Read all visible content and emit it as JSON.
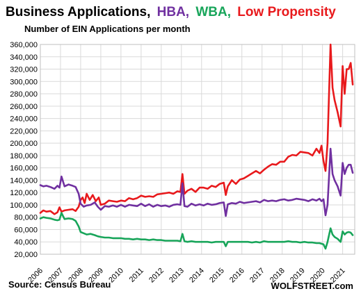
{
  "title": {
    "part1": "Business Applications,",
    "part2": "HBA,",
    "part3": "WBA,",
    "part4": "Low Propensity"
  },
  "subtitle": "Number of EIN Applications per month",
  "footer": {
    "source": "Source: Census Bureau",
    "brand": "WOLFSTREET.com"
  },
  "colors": {
    "business_applications": "#e8191c",
    "hba": "#7030a0",
    "wba": "#18a55a",
    "title_black": "#000000"
  },
  "chart_data": {
    "type": "line",
    "title": "Business Applications, HBA, WBA, Low Propensity",
    "subtitle": "Number of EIN Applications per month",
    "xlabel": "",
    "ylabel": "",
    "ylim": [
      20000,
      360000
    ],
    "xlim": [
      2006,
      2021.6
    ],
    "grid": true,
    "legend": "title",
    "yticks": [
      20000,
      40000,
      60000,
      80000,
      100000,
      120000,
      140000,
      160000,
      180000,
      200000,
      220000,
      240000,
      260000,
      280000,
      300000,
      320000,
      340000,
      360000
    ],
    "ytick_labels": [
      "20,000",
      "40,000",
      "60,000",
      "80,000",
      "100,000",
      "120,000",
      "140,000",
      "160,000",
      "180,000",
      "200,000",
      "220,000",
      "240,000",
      "260,000",
      "280,000",
      "300,000",
      "320,000",
      "340,000",
      "360,000"
    ],
    "xticks": [
      2006,
      2007,
      2008,
      2009,
      2010,
      2011,
      2012,
      2013,
      2014,
      2015,
      2016,
      2017,
      2018,
      2019,
      2020,
      2021
    ],
    "xtick_labels": [
      "2006",
      "2007",
      "2008",
      "2009",
      "2010",
      "2011",
      "2012",
      "2013",
      "2014",
      "2015",
      "2016",
      "2017",
      "2018",
      "2019",
      "2020",
      "2021"
    ],
    "series": [
      {
        "name": "Business Applications",
        "color": "#e8191c",
        "x": [
          2006.0,
          2006.15,
          2006.3,
          2006.5,
          2006.7,
          2006.85,
          2006.95,
          2007.05,
          2007.2,
          2007.4,
          2007.6,
          2007.75,
          2007.9,
          2008.0,
          2008.1,
          2008.2,
          2008.3,
          2008.45,
          2008.6,
          2008.75,
          2008.9,
          2009.0,
          2009.2,
          2009.4,
          2009.6,
          2009.8,
          2010.0,
          2010.2,
          2010.4,
          2010.6,
          2010.8,
          2011.0,
          2011.2,
          2011.4,
          2011.6,
          2011.8,
          2012.0,
          2012.2,
          2012.4,
          2012.6,
          2012.8,
          2012.95,
          2013.05,
          2013.15,
          2013.3,
          2013.5,
          2013.7,
          2013.9,
          2014.1,
          2014.3,
          2014.5,
          2014.7,
          2014.9,
          2015.1,
          2015.2,
          2015.3,
          2015.5,
          2015.7,
          2015.9,
          2016.1,
          2016.3,
          2016.5,
          2016.7,
          2016.9,
          2017.1,
          2017.3,
          2017.5,
          2017.7,
          2017.9,
          2018.1,
          2018.3,
          2018.5,
          2018.7,
          2018.9,
          2019.1,
          2019.3,
          2019.5,
          2019.7,
          2019.85,
          2019.95,
          2020.05,
          2020.15,
          2020.25,
          2020.4,
          2020.5,
          2020.6,
          2020.75,
          2020.9,
          2021.0,
          2021.1,
          2021.2,
          2021.3,
          2021.4,
          2021.5
        ],
        "values": [
          87000,
          91000,
          89000,
          90000,
          85000,
          88000,
          96000,
          89000,
          91000,
          92000,
          93000,
          90000,
          97000,
          108000,
          112000,
          103000,
          118000,
          108000,
          116000,
          106000,
          112000,
          100000,
          102000,
          107000,
          106000,
          105000,
          107000,
          106000,
          111000,
          109000,
          111000,
          115000,
          113000,
          114000,
          113000,
          117000,
          118000,
          119000,
          120000,
          118000,
          122000,
          121000,
          150000,
          118000,
          123000,
          126000,
          121000,
          128000,
          128000,
          126000,
          131000,
          129000,
          134000,
          136000,
          116000,
          130000,
          140000,
          134000,
          141000,
          143000,
          147000,
          151000,
          155000,
          151000,
          157000,
          162000,
          166000,
          165000,
          170000,
          170000,
          178000,
          181000,
          180000,
          186000,
          185000,
          184000,
          180000,
          191000,
          184000,
          196000,
          171000,
          155000,
          200000,
          360000,
          290000,
          270000,
          250000,
          227000,
          325000,
          280000,
          320000,
          320000,
          330000,
          295000
        ]
      },
      {
        "name": "HBA",
        "color": "#7030a0",
        "x": [
          2006.0,
          2006.15,
          2006.3,
          2006.5,
          2006.7,
          2006.85,
          2006.95,
          2007.05,
          2007.2,
          2007.4,
          2007.6,
          2007.75,
          2007.9,
          2008.0,
          2008.15,
          2008.3,
          2008.5,
          2008.7,
          2008.85,
          2009.0,
          2009.2,
          2009.4,
          2009.6,
          2009.8,
          2010.0,
          2010.2,
          2010.4,
          2010.6,
          2010.8,
          2011.0,
          2011.2,
          2011.4,
          2011.6,
          2011.8,
          2012.0,
          2012.2,
          2012.4,
          2012.6,
          2012.8,
          2012.95,
          2013.05,
          2013.15,
          2013.3,
          2013.5,
          2013.7,
          2013.9,
          2014.1,
          2014.3,
          2014.5,
          2014.7,
          2014.9,
          2015.1,
          2015.2,
          2015.3,
          2015.5,
          2015.7,
          2015.9,
          2016.1,
          2016.3,
          2016.5,
          2016.7,
          2016.9,
          2017.1,
          2017.3,
          2017.5,
          2017.7,
          2017.9,
          2018.1,
          2018.3,
          2018.5,
          2018.7,
          2018.9,
          2019.1,
          2019.3,
          2019.5,
          2019.7,
          2019.85,
          2019.95,
          2020.05,
          2020.15,
          2020.25,
          2020.4,
          2020.5,
          2020.6,
          2020.75,
          2020.9,
          2021.0,
          2021.1,
          2021.2,
          2021.3,
          2021.4,
          2021.5
        ],
        "values": [
          132000,
          130000,
          131000,
          129000,
          126000,
          131000,
          128000,
          146000,
          130000,
          133000,
          131000,
          129000,
          118000,
          102000,
          97000,
          99000,
          100000,
          104000,
          97000,
          92000,
          98000,
          97000,
          99000,
          97000,
          100000,
          97000,
          100000,
          99000,
          98000,
          102000,
          98000,
          101000,
          97000,
          100000,
          98000,
          99000,
          97000,
          100000,
          101000,
          100000,
          135000,
          98000,
          97000,
          102000,
          99000,
          101000,
          99000,
          102000,
          100000,
          101000,
          103000,
          104000,
          82000,
          101000,
          103000,
          102000,
          105000,
          103000,
          104000,
          105000,
          106000,
          104000,
          108000,
          106000,
          107000,
          106000,
          108000,
          109000,
          107000,
          108000,
          110000,
          109000,
          108000,
          106000,
          109000,
          107000,
          110000,
          106000,
          109000,
          83000,
          100000,
          191000,
          150000,
          140000,
          130000,
          115000,
          168000,
          150000,
          160000,
          165000,
          165000,
          152000
        ]
      },
      {
        "name": "WBA",
        "color": "#18a55a",
        "x": [
          2006.0,
          2006.15,
          2006.3,
          2006.5,
          2006.7,
          2006.85,
          2006.95,
          2007.05,
          2007.2,
          2007.4,
          2007.6,
          2007.75,
          2007.9,
          2008.0,
          2008.15,
          2008.3,
          2008.5,
          2008.7,
          2008.85,
          2009.0,
          2009.2,
          2009.4,
          2009.6,
          2009.8,
          2010.0,
          2010.2,
          2010.4,
          2010.6,
          2010.8,
          2011.0,
          2011.2,
          2011.4,
          2011.6,
          2011.8,
          2012.0,
          2012.2,
          2012.4,
          2012.6,
          2012.8,
          2012.95,
          2013.05,
          2013.15,
          2013.3,
          2013.5,
          2013.7,
          2013.9,
          2014.1,
          2014.3,
          2014.5,
          2014.7,
          2014.9,
          2015.1,
          2015.2,
          2015.3,
          2015.5,
          2015.7,
          2015.9,
          2016.1,
          2016.3,
          2016.5,
          2016.7,
          2016.9,
          2017.1,
          2017.3,
          2017.5,
          2017.7,
          2017.9,
          2018.1,
          2018.3,
          2018.5,
          2018.7,
          2018.9,
          2019.1,
          2019.3,
          2019.5,
          2019.7,
          2019.85,
          2019.95,
          2020.05,
          2020.15,
          2020.25,
          2020.4,
          2020.5,
          2020.6,
          2020.75,
          2020.9,
          2021.0,
          2021.1,
          2021.2,
          2021.3,
          2021.4,
          2021.5
        ],
        "values": [
          78000,
          80000,
          79000,
          78000,
          76000,
          75000,
          76000,
          87000,
          77000,
          78000,
          77000,
          74000,
          65000,
          56000,
          54000,
          52000,
          53000,
          51000,
          49000,
          48000,
          47000,
          47000,
          46000,
          46000,
          46000,
          45000,
          45000,
          44000,
          45000,
          44000,
          44000,
          43000,
          44000,
          43000,
          43000,
          42000,
          42000,
          42000,
          42000,
          41000,
          53000,
          41000,
          40000,
          41000,
          40000,
          40000,
          40000,
          40000,
          39000,
          40000,
          40000,
          40000,
          33000,
          40000,
          40000,
          40000,
          40000,
          40000,
          40000,
          39000,
          40000,
          39000,
          41000,
          40000,
          40000,
          40000,
          40000,
          40000,
          41000,
          40000,
          40000,
          39000,
          40000,
          39000,
          39000,
          38000,
          38000,
          37000,
          36000,
          29000,
          40000,
          62000,
          52000,
          48000,
          45000,
          40000,
          57000,
          52000,
          55000,
          56000,
          55000,
          51000
        ]
      }
    ]
  }
}
